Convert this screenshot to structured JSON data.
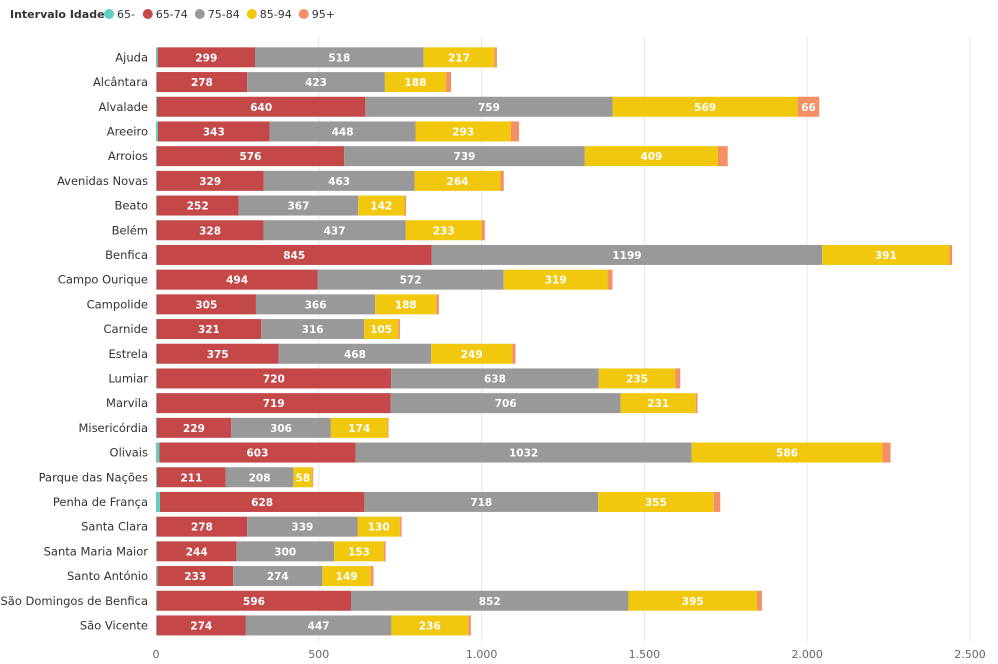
{
  "chart_data": {
    "type": "bar",
    "orientation": "horizontal",
    "stacked": true,
    "legend": {
      "title": "Intervalo Idade",
      "placement": "top-left"
    },
    "categories": [
      "Ajuda",
      "Alcântara",
      "Alvalade",
      "Areeiro",
      "Arroios",
      "Avenidas Novas",
      "Beato",
      "Belém",
      "Benfica",
      "Campo Ourique",
      "Campolide",
      "Carnide",
      "Estrela",
      "Lumiar",
      "Marvila",
      "Misericórdia",
      "Olivais",
      "Parque das Nações",
      "Penha de França",
      "Santa Clara",
      "Santa Maria Maior",
      "Santo António",
      "São Domingos de Benfica",
      "São Vicente"
    ],
    "series": [
      {
        "name": "65-",
        "color": "#5ecfc4",
        "values": [
          5,
          2,
          3,
          6,
          2,
          2,
          2,
          2,
          2,
          2,
          2,
          2,
          2,
          2,
          2,
          2,
          10,
          3,
          12,
          2,
          3,
          4,
          3,
          2
        ]
      },
      {
        "name": "65-74",
        "color": "#c44848",
        "values": [
          299,
          278,
          640,
          343,
          576,
          329,
          252,
          328,
          845,
          494,
          305,
          321,
          375,
          720,
          719,
          229,
          603,
          211,
          628,
          278,
          244,
          233,
          596,
          274
        ]
      },
      {
        "name": "75-84",
        "color": "#999999",
        "values": [
          518,
          423,
          759,
          448,
          739,
          463,
          367,
          437,
          1199,
          572,
          366,
          316,
          468,
          638,
          706,
          306,
          1032,
          208,
          718,
          339,
          300,
          274,
          852,
          447
        ]
      },
      {
        "name": "85-94",
        "color": "#f2c80f",
        "values": [
          217,
          188,
          569,
          293,
          409,
          264,
          142,
          233,
          391,
          319,
          188,
          105,
          249,
          235,
          231,
          174,
          586,
          58,
          355,
          130,
          153,
          149,
          395,
          236
        ]
      },
      {
        "name": "95+",
        "color": "#f58f65",
        "values": [
          8,
          15,
          66,
          25,
          30,
          10,
          5,
          10,
          8,
          15,
          8,
          5,
          10,
          15,
          5,
          3,
          25,
          3,
          20,
          5,
          5,
          8,
          15,
          8
        ]
      }
    ],
    "data_labels": {
      "65-74": [
        "299",
        "278",
        "640",
        "343",
        "576",
        "329",
        "252",
        "328",
        "845",
        "494",
        "305",
        "321",
        "375",
        "720",
        "719",
        "229",
        "603",
        "211",
        "628",
        "278",
        "244",
        "233",
        "596",
        "274"
      ],
      "75-84": [
        "518",
        "423",
        "759",
        "448",
        "739",
        "463",
        "367",
        "437",
        "1199",
        "572",
        "366",
        "316",
        "468",
        "638",
        "706",
        "306",
        "1032",
        "208",
        "718",
        "339",
        "300",
        "274",
        "852",
        "447"
      ],
      "85-94": [
        "217",
        "188",
        "569",
        "293",
        "409",
        "264",
        "142",
        "233",
        "391",
        "319",
        "188",
        "105",
        "249",
        "235",
        "231",
        "174",
        "586",
        "58",
        "355",
        "130",
        "153",
        "149",
        "395",
        "236"
      ],
      "95+": [
        "",
        "",
        "66",
        "",
        "",
        "",
        "",
        "",
        "",
        "",
        "",
        "",
        "",
        "",
        "",
        "",
        "",
        "",
        "",
        "",
        "",
        "",
        "",
        ""
      ]
    },
    "xlim": [
      0,
      2500
    ],
    "x_ticks": [
      0,
      500,
      1000,
      1500,
      2000,
      2500
    ],
    "x_tick_labels": [
      "0",
      "500",
      "1.000",
      "1.500",
      "2.000",
      "2.500"
    ],
    "grid": true
  }
}
